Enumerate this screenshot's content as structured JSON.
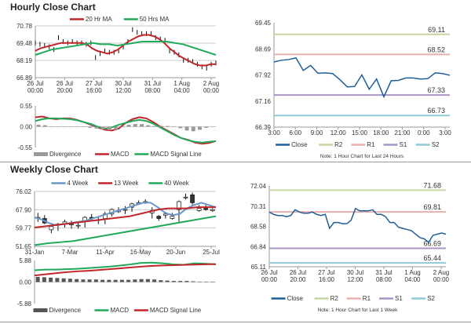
{
  "titles": {
    "hourly": "Hourly Close Chart",
    "weekly": "Weekly Close Chart"
  },
  "colors": {
    "red": "#c0262a",
    "green": "#1faa59",
    "blue": "#1f5f99",
    "lightblue": "#6b97c9",
    "r2": "#c5d6a0",
    "r1": "#e8b1ae",
    "s1": "#a996c5",
    "s2": "#8fcbd6",
    "div": "#9a9a9a",
    "divdark": "#555555"
  },
  "chart_data": [
    {
      "id": "hourly",
      "type": "line",
      "title": "Hourly Close Chart",
      "yticks": [
        "70.78",
        "69.48",
        "68.19",
        "66.89"
      ],
      "ylim": [
        66.89,
        70.78
      ],
      "xticks": [
        "26 Jul\n00:00",
        "26 Jul\n20:00",
        "27 Jul\n16:00",
        "30 Jul\n12:00",
        "31 Jul\n08:00",
        "1 Aug\n04:00",
        "2 Aug\n00:00"
      ],
      "legend": [
        "20 Hr MA",
        "50 Hrs MA"
      ],
      "series": [
        {
          "name": "Close",
          "style": "bars",
          "color": "#111",
          "values": [
            69.5,
            69.4,
            69.3,
            69.2,
            69.0,
            69.9,
            69.6,
            69.5,
            69.6,
            69.5,
            69.5,
            69.4,
            69.5,
            68.4,
            68.7,
            68.9,
            68.8,
            68.8,
            68.9,
            69.2,
            69.6,
            70.5,
            70.3,
            70.2,
            70.2,
            70.2,
            69.9,
            69.8,
            69.7,
            68.9,
            68.8,
            68.6,
            68.2,
            68.2,
            68.1,
            67.9,
            67.7,
            67.6,
            67.9,
            68.0
          ]
        },
        {
          "name": "20 Hr MA",
          "color": "#c0262a",
          "values": [
            68.9,
            69.1,
            69.2,
            69.3,
            69.4,
            69.5,
            69.5,
            69.5,
            69.5,
            69.5,
            69.4,
            69.1,
            68.9,
            68.8,
            68.7,
            68.8,
            69.0,
            69.3,
            69.6,
            69.8,
            70.0,
            70.1,
            70.1,
            70.0,
            69.8,
            69.5,
            69.1,
            68.8,
            68.5,
            68.3,
            68.1,
            67.9,
            67.8,
            67.8,
            67.9,
            67.9
          ]
        },
        {
          "name": "50 Hrs MA",
          "color": "#1faa59",
          "values": [
            68.6,
            68.8,
            69.0,
            69.1,
            69.2,
            69.3,
            69.4,
            69.5,
            69.4,
            69.4,
            69.3,
            69.4,
            69.5,
            69.6,
            69.6,
            69.6,
            69.6,
            69.5,
            69.4,
            69.2,
            69.0,
            68.8,
            68.6
          ]
        }
      ]
    },
    {
      "id": "hourly-macd",
      "type": "line",
      "yticks": [
        "0.55",
        "0.00",
        "-0.55"
      ],
      "ylim": [
        -0.55,
        0.55
      ],
      "legend": [
        "Divergence",
        "MACD",
        "MACD Signal Line"
      ],
      "series": [
        {
          "name": "MACD",
          "color": "#c0262a",
          "values": [
            0.25,
            0.27,
            0.22,
            0.2,
            0.22,
            0.22,
            0.18,
            0.12,
            0.05,
            -0.02,
            -0.08,
            -0.1,
            -0.05,
            0.1,
            0.2,
            0.25,
            0.22,
            0.12,
            0.0,
            -0.1,
            -0.2,
            -0.3,
            -0.35,
            -0.42,
            -0.45,
            -0.43,
            -0.38
          ]
        },
        {
          "name": "MACD Signal Line",
          "color": "#1faa59",
          "values": [
            0.15,
            0.2,
            0.22,
            0.22,
            0.21,
            0.2,
            0.17,
            0.12,
            0.07,
            0.0,
            -0.05,
            -0.02,
            0.05,
            0.1,
            0.15,
            0.18,
            0.15,
            0.08,
            -0.02,
            -0.12,
            -0.22,
            -0.3,
            -0.36,
            -0.4,
            -0.42,
            -0.4,
            -0.38
          ]
        },
        {
          "name": "Divergence",
          "style": "hist",
          "color": "#9a9a9a",
          "values": [
            0.05,
            0.04,
            0.0,
            -0.01,
            0.0,
            0.01,
            0.0,
            -0.01,
            -0.03,
            -0.05,
            -0.07,
            -0.09,
            -0.08,
            0.0,
            0.05,
            0.07,
            0.07,
            0.04,
            0.02,
            0.02,
            0.02,
            -0.0,
            -0.04,
            -0.1,
            -0.12,
            -0.08,
            -0.03,
            -0.01
          ]
        }
      ]
    },
    {
      "id": "hourly-24h",
      "type": "line",
      "yticks": [
        "69.45",
        "68.69",
        "67.92",
        "67.16",
        "66.39"
      ],
      "ylim": [
        66.39,
        69.45
      ],
      "xticks": [
        "3:00",
        "6:00",
        "9:00",
        "12:00",
        "15:00",
        "18:00",
        "21:00",
        "0:00",
        "3:00"
      ],
      "levels": [
        {
          "name": "R2",
          "value": 69.11,
          "label": "69.11",
          "color": "#c5d6a0"
        },
        {
          "name": "R1",
          "value": 68.52,
          "label": "68.52",
          "color": "#e8b1ae"
        },
        {
          "name": "S1",
          "value": 67.33,
          "label": "67.33",
          "color": "#a996c5"
        },
        {
          "name": "S2",
          "value": 66.73,
          "label": "66.73",
          "color": "#8fcbd6"
        }
      ],
      "legend": [
        "Close",
        "R2",
        "R1",
        "S1",
        "S2"
      ],
      "note": "Note: 1 Hour Chart for Last 24 Hours",
      "series": [
        {
          "name": "Close",
          "color": "#1f5f99",
          "values": [
            68.3,
            68.35,
            68.37,
            68.42,
            68.05,
            68.2,
            67.97,
            67.98,
            67.96,
            67.78,
            67.57,
            67.58,
            67.92,
            67.5,
            67.8,
            67.28,
            67.75,
            67.76,
            67.83,
            67.83,
            67.8,
            67.81,
            67.98,
            67.96,
            67.91
          ]
        }
      ]
    },
    {
      "id": "weekly",
      "type": "candlestick",
      "title": "Weekly Close Chart",
      "yticks": [
        "76.02",
        "67.90",
        "59.77",
        "51.65"
      ],
      "ylim": [
        51.65,
        76.02
      ],
      "xticks": [
        "31-Jan",
        "7-Mar",
        "11-Apr",
        "16-May",
        "20-Jun",
        "25-Jul"
      ],
      "legend": [
        "4 Week",
        "13 Week",
        "40 Week"
      ],
      "candles": [
        [
          64,
          66.5,
          62.5,
          64.5
        ],
        [
          64,
          65.5,
          61.5,
          62
        ],
        [
          59,
          61,
          57.5,
          60.5
        ],
        [
          61,
          62,
          58.5,
          61.5
        ],
        [
          61.5,
          63.5,
          60,
          62.5
        ],
        [
          61.5,
          63,
          59.5,
          61.5
        ],
        [
          61,
          62,
          59.5,
          61
        ],
        [
          63,
          65,
          60,
          64.5
        ],
        [
          64.5,
          66,
          63,
          64
        ],
        [
          63.5,
          65,
          61.5,
          63.5
        ],
        [
          64,
          67,
          61.5,
          66
        ],
        [
          66,
          68.5,
          65,
          68
        ],
        [
          67,
          69,
          66.5,
          67.5
        ],
        [
          68,
          69.5,
          66,
          68
        ],
        [
          69,
          71,
          67,
          70.5
        ],
        [
          70.5,
          72,
          70,
          71
        ],
        [
          71.5,
          72.5,
          70.5,
          71.5
        ],
        [
          66.5,
          69,
          64,
          67.5
        ],
        [
          65,
          65.5,
          63,
          64
        ],
        [
          65.5,
          67,
          64,
          66
        ],
        [
          64,
          66.5,
          63.5,
          65
        ],
        [
          68,
          72,
          62.5,
          71.5
        ],
        [
          73.5,
          75,
          72.5,
          73.5
        ],
        [
          74.5,
          75.5,
          70,
          71
        ],
        [
          67.5,
          70,
          67,
          68.5
        ],
        [
          68.5,
          70,
          67.5,
          68
        ],
        [
          67.5,
          68.5,
          67,
          68
        ]
      ],
      "series": [
        {
          "name": "4 Week",
          "color": "#6b97c9",
          "values": [
            64.5,
            63.5,
            62,
            61,
            61.5,
            62,
            62.5,
            63,
            64,
            65,
            66,
            67,
            68,
            69,
            70,
            71,
            71,
            69,
            66.5,
            65.5,
            66,
            68.5,
            70,
            71,
            70,
            69
          ]
        },
        {
          "name": "13 Week",
          "color": "#c0262a",
          "values": [
            60,
            60.5,
            61,
            61.5,
            62,
            62.5,
            63,
            63.5,
            64,
            64.5,
            65,
            66,
            67,
            68,
            68.5,
            68.5,
            68.5,
            69,
            69,
            69
          ]
        },
        {
          "name": "40 Week",
          "color": "#1faa59",
          "values": [
            52.2,
            53,
            53.5,
            54,
            55,
            56,
            57,
            58,
            59,
            60,
            61,
            62,
            63,
            64,
            65
          ]
        }
      ]
    },
    {
      "id": "weekly-macd",
      "type": "line",
      "yticks": [
        "5.88",
        "0.00",
        "-5.88"
      ],
      "ylim": [
        -5.88,
        5.88
      ],
      "legend": [
        "Divergence",
        "MACD",
        "MACD Signal Line"
      ],
      "series": [
        {
          "name": "MACD",
          "color": "#1faa59",
          "values": [
            3.2,
            3.4,
            3.4,
            3.5,
            3.6,
            3.8,
            4.0,
            4.2,
            4.5,
            4.8,
            5.2,
            5.3,
            5.1,
            4.8,
            4.7,
            5.1,
            5.0,
            4.8
          ]
        },
        {
          "name": "MACD Signal Line",
          "color": "#c0262a",
          "values": [
            1.8,
            2.2,
            2.6,
            2.9,
            3.1,
            3.4,
            3.7,
            4.0,
            4.3,
            4.5,
            4.6,
            4.7,
            4.8,
            4.9
          ]
        },
        {
          "name": "Divergence",
          "style": "hist",
          "color": "#555555",
          "values": [
            1.4,
            1.3,
            1.2,
            1.1,
            1.0,
            0.9,
            0.8,
            0.7,
            0.7,
            0.7,
            0.6,
            0.6,
            0.6,
            0.6,
            0.6,
            0.7,
            0.8,
            0.8,
            0.7,
            0.5,
            0.4,
            0.3,
            0.3,
            0.3,
            0.2,
            0.1,
            0.05,
            0.02
          ]
        }
      ]
    },
    {
      "id": "weekly-1w",
      "type": "line",
      "yticks": [
        "72.04",
        "70.31",
        "68.58",
        "66.84",
        "65.11"
      ],
      "ylim": [
        65.11,
        72.04
      ],
      "xticks": [
        "26 Jul\n00:00",
        "26 Jul\n20:00",
        "27 Jul\n16:00",
        "30 Jul\n12:00",
        "31 Jul\n08:00",
        "1 Aug\n04:00",
        "2 Aug\n00:00"
      ],
      "levels": [
        {
          "name": "R2",
          "value": 71.68,
          "label": "71.68",
          "color": "#c5d6a0"
        },
        {
          "name": "R1",
          "value": 69.81,
          "label": "69.81",
          "color": "#e8b1ae"
        },
        {
          "name": "S1",
          "value": 66.69,
          "label": "66.69",
          "color": "#a996c5"
        },
        {
          "name": "S2",
          "value": 65.44,
          "label": "65.44",
          "color": "#8fcbd6"
        }
      ],
      "legend": [
        "Close",
        "R2",
        "R1",
        "S1",
        "S2"
      ],
      "note": "Note: 1 Hour Chart for Last 1 Week",
      "series": [
        {
          "name": "Close",
          "color": "#1f5f99",
          "values": [
            69.8,
            69.6,
            69.5,
            69.5,
            69.4,
            69.5,
            70.0,
            69.8,
            69.7,
            69.7,
            69.8,
            69.6,
            69.5,
            69.6,
            68.4,
            68.9,
            68.9,
            68.8,
            68.8,
            69.1,
            70.1,
            69.9,
            69.9,
            69.9,
            70.0,
            69.6,
            69.6,
            69.4,
            68.9,
            68.9,
            68.5,
            68.4,
            68.3,
            68.2,
            67.9,
            67.6,
            67.5,
            67.2,
            67.8,
            67.9,
            68.0,
            67.9
          ]
        }
      ]
    }
  ]
}
